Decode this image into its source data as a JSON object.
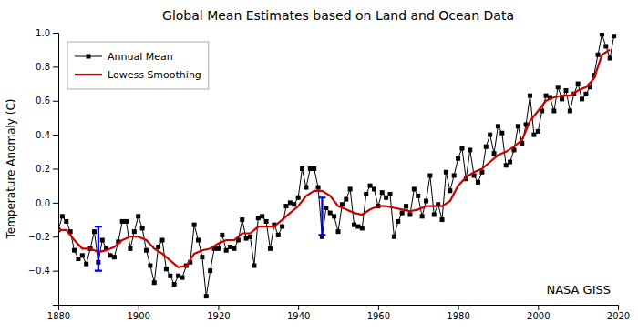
{
  "chart_data": {
    "type": "line",
    "title": "Global Mean Estimates based on Land and Ocean Data",
    "ylabel": "Temperature Anomaly (C)",
    "xlim": [
      1880,
      2020
    ],
    "ylim": [
      -0.6,
      1.0
    ],
    "xticks": [
      1880,
      1900,
      1920,
      1940,
      1960,
      1980,
      2000,
      2020
    ],
    "yticks": [
      {
        "value": -0.4,
        "label": "−0.4"
      },
      {
        "value": -0.2,
        "label": "−0.2"
      },
      {
        "value": 0,
        "label": "0.0"
      },
      0.2,
      0.4,
      0.6,
      0.8,
      {
        "value": 1,
        "label": "1.0"
      }
    ],
    "grid": false,
    "legend": "upper left",
    "annotations": [
      "NASA GISS"
    ],
    "series": [
      {
        "name": "Annual Mean",
        "color": "#000000",
        "marker": "square",
        "x": [
          1880,
          1881,
          1882,
          1883,
          1884,
          1885,
          1886,
          1887,
          1888,
          1889,
          1890,
          1891,
          1892,
          1893,
          1894,
          1895,
          1896,
          1897,
          1898,
          1899,
          1900,
          1901,
          1902,
          1903,
          1904,
          1905,
          1906,
          1907,
          1908,
          1909,
          1910,
          1911,
          1912,
          1913,
          1914,
          1915,
          1916,
          1917,
          1918,
          1919,
          1920,
          1921,
          1922,
          1923,
          1924,
          1925,
          1926,
          1927,
          1928,
          1929,
          1930,
          1931,
          1932,
          1933,
          1934,
          1935,
          1936,
          1937,
          1938,
          1939,
          1940,
          1941,
          1942,
          1943,
          1944,
          1945,
          1946,
          1947,
          1948,
          1949,
          1950,
          1951,
          1952,
          1953,
          1954,
          1955,
          1956,
          1957,
          1958,
          1959,
          1960,
          1961,
          1962,
          1963,
          1964,
          1965,
          1966,
          1967,
          1968,
          1969,
          1970,
          1971,
          1972,
          1973,
          1974,
          1975,
          1976,
          1977,
          1978,
          1979,
          1980,
          1981,
          1982,
          1983,
          1984,
          1985,
          1986,
          1987,
          1988,
          1989,
          1990,
          1991,
          1992,
          1993,
          1994,
          1995,
          1996,
          1997,
          1998,
          1999,
          2000,
          2001,
          2002,
          2003,
          2004,
          2005,
          2006,
          2007,
          2008,
          2009,
          2010,
          2011,
          2012,
          2013,
          2014,
          2015,
          2016,
          2017,
          2018,
          2019
        ],
        "values": [
          -0.16,
          -0.08,
          -0.11,
          -0.17,
          -0.28,
          -0.33,
          -0.31,
          -0.36,
          -0.27,
          -0.17,
          -0.35,
          -0.22,
          -0.27,
          -0.31,
          -0.32,
          -0.23,
          -0.11,
          -0.11,
          -0.27,
          -0.17,
          -0.08,
          -0.15,
          -0.28,
          -0.37,
          -0.47,
          -0.26,
          -0.22,
          -0.39,
          -0.43,
          -0.48,
          -0.43,
          -0.44,
          -0.37,
          -0.35,
          -0.13,
          -0.22,
          -0.32,
          -0.55,
          -0.4,
          -0.27,
          -0.27,
          -0.19,
          -0.28,
          -0.26,
          -0.27,
          -0.22,
          -0.1,
          -0.21,
          -0.2,
          -0.37,
          -0.09,
          -0.08,
          -0.11,
          -0.27,
          -0.13,
          -0.19,
          -0.14,
          -0.02,
          -0.0,
          -0.01,
          0.03,
          0.2,
          0.09,
          0.2,
          0.2,
          0.09,
          -0.2,
          -0.03,
          -0.06,
          -0.08,
          -0.17,
          -0.01,
          0.02,
          0.08,
          -0.13,
          -0.14,
          -0.15,
          0.05,
          0.1,
          0.08,
          -0.02,
          0.06,
          0.03,
          0.05,
          -0.2,
          -0.11,
          -0.06,
          -0.02,
          -0.07,
          0.08,
          0.04,
          -0.08,
          0.01,
          0.16,
          -0.07,
          -0.01,
          -0.1,
          0.18,
          0.07,
          0.16,
          0.26,
          0.32,
          0.14,
          0.31,
          0.16,
          0.12,
          0.18,
          0.33,
          0.4,
          0.29,
          0.45,
          0.41,
          0.22,
          0.24,
          0.31,
          0.45,
          0.35,
          0.46,
          0.63,
          0.4,
          0.42,
          0.54,
          0.63,
          0.62,
          0.54,
          0.68,
          0.61,
          0.66,
          0.54,
          0.64,
          0.7,
          0.61,
          0.64,
          0.68,
          0.75,
          0.87,
          0.99,
          0.92,
          0.85,
          0.98
        ]
      },
      {
        "name": "Lowess Smoothing",
        "color": "#cc0000",
        "x": [
          1880,
          1882,
          1884,
          1886,
          1888,
          1890,
          1892,
          1894,
          1896,
          1898,
          1900,
          1902,
          1904,
          1906,
          1908,
          1910,
          1912,
          1914,
          1916,
          1918,
          1920,
          1922,
          1924,
          1926,
          1928,
          1930,
          1932,
          1934,
          1936,
          1938,
          1940,
          1942,
          1944,
          1946,
          1948,
          1950,
          1952,
          1954,
          1956,
          1958,
          1960,
          1962,
          1964,
          1966,
          1968,
          1970,
          1972,
          1974,
          1976,
          1978,
          1980,
          1982,
          1984,
          1986,
          1988,
          1990,
          1992,
          1994,
          1996,
          1998,
          2000,
          2002,
          2004,
          2006,
          2008,
          2010,
          2012,
          2014,
          2016,
          2018
        ],
        "values": [
          -0.16,
          -0.16,
          -0.22,
          -0.27,
          -0.27,
          -0.29,
          -0.28,
          -0.26,
          -0.22,
          -0.2,
          -0.2,
          -0.22,
          -0.27,
          -0.3,
          -0.34,
          -0.38,
          -0.37,
          -0.3,
          -0.28,
          -0.27,
          -0.24,
          -0.22,
          -0.22,
          -0.18,
          -0.18,
          -0.14,
          -0.14,
          -0.14,
          -0.1,
          -0.06,
          -0.02,
          0.04,
          0.07,
          0.07,
          0.04,
          -0.02,
          -0.04,
          -0.06,
          -0.07,
          -0.04,
          -0.02,
          -0.02,
          -0.03,
          -0.04,
          -0.05,
          -0.04,
          -0.02,
          -0.02,
          -0.02,
          0.01,
          0.1,
          0.15,
          0.18,
          0.2,
          0.24,
          0.28,
          0.3,
          0.33,
          0.37,
          0.48,
          0.54,
          0.6,
          0.62,
          0.63,
          0.63,
          0.66,
          0.68,
          0.73,
          0.87,
          0.9
        ]
      }
    ],
    "error_bars": {
      "color": "#0000cc",
      "x": [
        1890,
        1946
      ],
      "values": [
        -0.27,
        -0.08
      ],
      "errors": [
        0.13,
        0.11
      ]
    }
  }
}
